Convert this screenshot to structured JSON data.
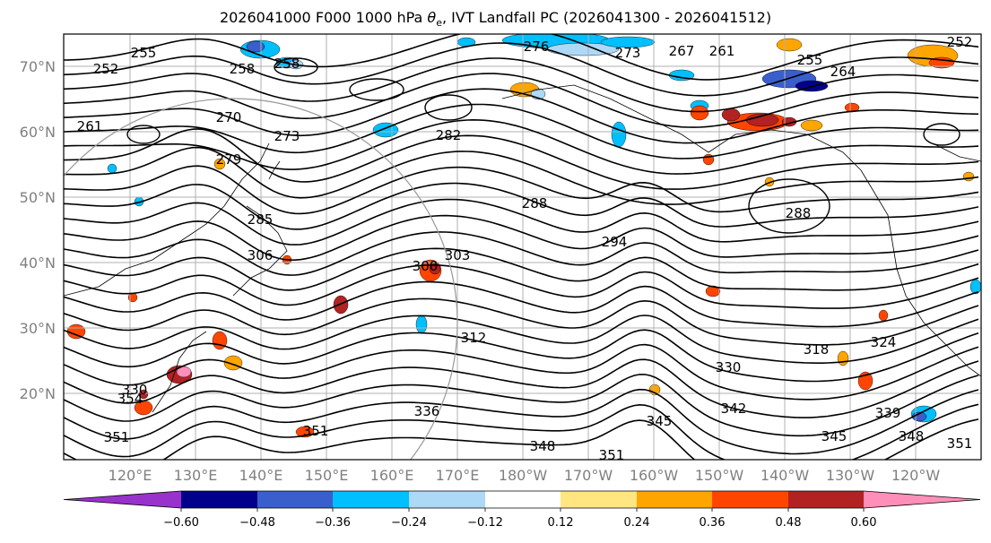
{
  "title_parts": {
    "prefix": "2026041000 F000 1000 hPa ",
    "variable": "θ",
    "variable_sub": "e",
    "suffix": ", IVT Landfall PC (2026041300 - 2026041512)"
  },
  "map": {
    "lat_labels": [
      "70°N",
      "60°N",
      "50°N",
      "40°N",
      "30°N",
      "20°N"
    ],
    "lon_labels": [
      "120°E",
      "130°E",
      "140°E",
      "150°E",
      "160°E",
      "170°E",
      "180°W",
      "170°W",
      "160°W",
      "150°W",
      "140°W",
      "130°W",
      "120°W"
    ],
    "contour_labels": [
      "252",
      "255",
      "258",
      "258",
      "270",
      "261",
      "273",
      "276",
      "273",
      "267",
      "255",
      "282",
      "279",
      "285",
      "288",
      "288",
      "294",
      "300",
      "303",
      "306",
      "312",
      "318",
      "324",
      "330",
      "336",
      "342",
      "345",
      "348",
      "351",
      "351",
      "351",
      "348",
      "351",
      "339",
      "345",
      "330",
      "354",
      "252",
      "261",
      "264"
    ]
  },
  "colorbar": {
    "ticks": [
      "−0.60",
      "−0.48",
      "−0.36",
      "−0.24",
      "−0.12",
      "0.12",
      "0.24",
      "0.36",
      "0.48",
      "0.60"
    ],
    "colors": [
      "#9932cc",
      "#00008b",
      "#3a5fcd",
      "#00bfff",
      "#add8f6",
      "#ffffff",
      "#ffe680",
      "#ffa500",
      "#ff4500",
      "#b22222",
      "#ff8fb8"
    ]
  },
  "colors": {
    "contour": "#000000",
    "grid": "#b0b0b0",
    "label_gray": "#808080"
  }
}
